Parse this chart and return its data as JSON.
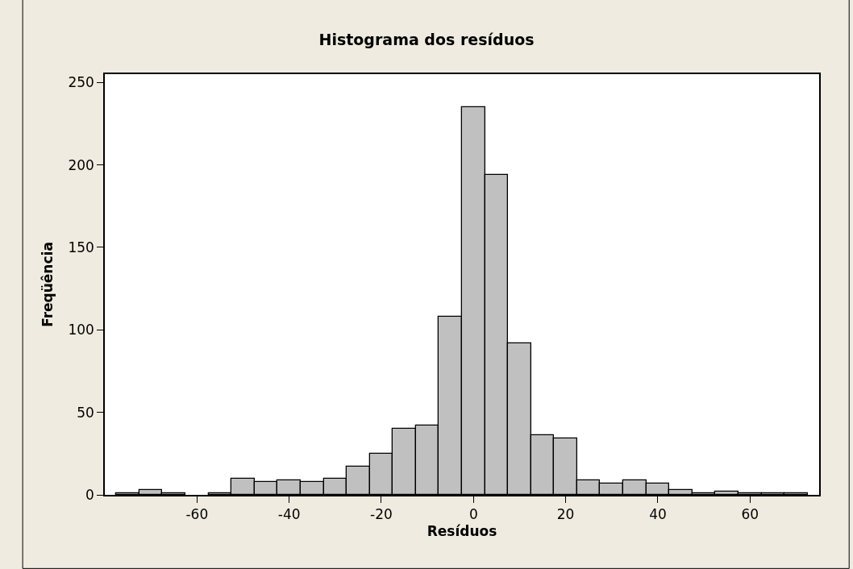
{
  "chart_data": {
    "type": "histogram",
    "title": "Histograma dos resíduos",
    "xlabel": "Resíduos",
    "ylabel": "Freqüência",
    "bins": [
      -77.5,
      -72.5,
      -67.5,
      -62.5,
      -57.5,
      -52.5,
      -47.5,
      -42.5,
      -37.5,
      -32.5,
      -27.5,
      -22.5,
      -17.5,
      -12.5,
      -7.5,
      -2.5,
      2.5,
      7.5,
      12.5,
      17.5,
      22.5,
      27.5,
      32.5,
      37.5,
      42.5,
      47.5,
      52.5,
      57.5,
      62.5,
      67.5,
      72.5
    ],
    "values": [
      1,
      3,
      1,
      0,
      1,
      10,
      8,
      9,
      8,
      10,
      17,
      25,
      40,
      42,
      108,
      235,
      194,
      92,
      36,
      34,
      9,
      7,
      9,
      7,
      3,
      1,
      2,
      1,
      1,
      1
    ],
    "color": "#c0c0c0",
    "xlim": [
      -80,
      75
    ],
    "xticks": [
      -60,
      -40,
      -20,
      0,
      20,
      40,
      60
    ],
    "ylim": [
      0,
      255
    ],
    "yticks": [
      0,
      50,
      100,
      150,
      200,
      250
    ]
  }
}
